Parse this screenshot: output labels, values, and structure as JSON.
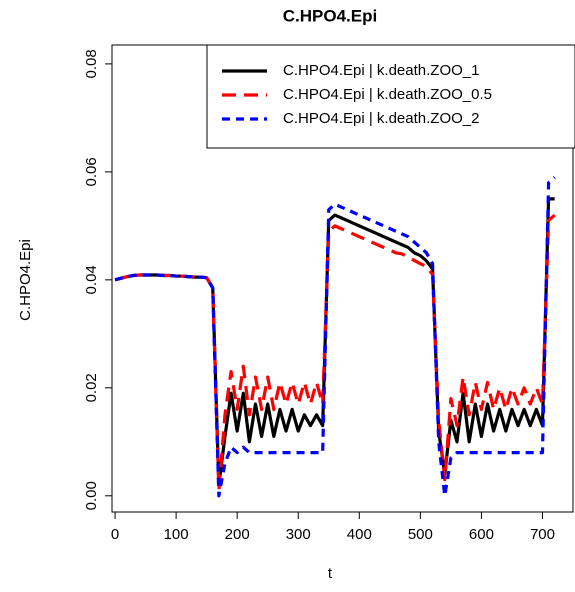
{
  "chart_data": {
    "type": "line",
    "title": "C.HPO4.Epi",
    "x_label": "t",
    "y_label": "C.HPO4.Epi",
    "x": [
      0,
      10,
      20,
      30,
      40,
      50,
      60,
      70,
      80,
      90,
      100,
      110,
      120,
      130,
      140,
      150,
      160,
      170,
      180,
      190,
      200,
      210,
      220,
      230,
      240,
      250,
      260,
      270,
      280,
      290,
      300,
      310,
      320,
      330,
      340,
      350,
      360,
      370,
      380,
      390,
      400,
      410,
      420,
      430,
      440,
      450,
      460,
      470,
      480,
      490,
      500,
      510,
      520,
      530,
      540,
      550,
      560,
      570,
      580,
      590,
      600,
      610,
      620,
      630,
      640,
      650,
      660,
      670,
      680,
      690,
      700,
      710,
      720
    ],
    "series": [
      {
        "name": "C.HPO4.Epi | k.death.ZOO_1",
        "color": "#000000",
        "dash": "none",
        "values": [
          0.04,
          0.0403,
          0.0406,
          0.0408,
          0.0409,
          0.0409,
          0.0409,
          0.0409,
          0.0408,
          0.0408,
          0.0407,
          0.0407,
          0.0406,
          0.0405,
          0.0405,
          0.0404,
          0.0385,
          0.002,
          0.011,
          0.019,
          0.012,
          0.019,
          0.01,
          0.017,
          0.011,
          0.017,
          0.011,
          0.016,
          0.012,
          0.016,
          0.012,
          0.015,
          0.013,
          0.015,
          0.013,
          0.051,
          0.052,
          0.0515,
          0.051,
          0.0505,
          0.05,
          0.0495,
          0.049,
          0.0485,
          0.048,
          0.0475,
          0.047,
          0.0465,
          0.046,
          0.045,
          0.0445,
          0.0435,
          0.042,
          0.012,
          0.004,
          0.014,
          0.01,
          0.019,
          0.01,
          0.017,
          0.011,
          0.017,
          0.012,
          0.016,
          0.012,
          0.016,
          0.013,
          0.016,
          0.013,
          0.016,
          0.013,
          0.055,
          0.055
        ]
      },
      {
        "name": "C.HPO4.Epi | k.death.ZOO_0.5",
        "color": "#ff0000",
        "dash": "14,8",
        "values": [
          0.04,
          0.0403,
          0.0406,
          0.0408,
          0.0409,
          0.0409,
          0.0409,
          0.0409,
          0.0408,
          0.0408,
          0.0407,
          0.0407,
          0.0406,
          0.0405,
          0.0405,
          0.0404,
          0.0385,
          0.001,
          0.015,
          0.023,
          0.016,
          0.024,
          0.015,
          0.022,
          0.016,
          0.022,
          0.016,
          0.021,
          0.017,
          0.021,
          0.017,
          0.021,
          0.017,
          0.021,
          0.017,
          0.049,
          0.05,
          0.0495,
          0.049,
          0.0485,
          0.048,
          0.0475,
          0.047,
          0.0465,
          0.046,
          0.0455,
          0.045,
          0.0448,
          0.0442,
          0.0436,
          0.043,
          0.0425,
          0.041,
          0.014,
          0.003,
          0.018,
          0.013,
          0.022,
          0.015,
          0.021,
          0.016,
          0.021,
          0.016,
          0.02,
          0.016,
          0.02,
          0.017,
          0.02,
          0.017,
          0.02,
          0.017,
          0.051,
          0.052
        ]
      },
      {
        "name": "C.HPO4.Epi | k.death.ZOO_2",
        "color": "#0000ff",
        "dash": "8,6",
        "values": [
          0.04,
          0.0403,
          0.0406,
          0.0408,
          0.0409,
          0.0409,
          0.0409,
          0.0409,
          0.0408,
          0.0408,
          0.0407,
          0.0407,
          0.0406,
          0.0405,
          0.0405,
          0.0404,
          0.0385,
          0.0,
          0.006,
          0.009,
          0.008,
          0.009,
          0.008,
          0.008,
          0.008,
          0.008,
          0.008,
          0.008,
          0.008,
          0.008,
          0.008,
          0.008,
          0.008,
          0.008,
          0.008,
          0.053,
          0.054,
          0.0535,
          0.053,
          0.0525,
          0.052,
          0.0515,
          0.051,
          0.0505,
          0.05,
          0.0495,
          0.049,
          0.0485,
          0.048,
          0.047,
          0.046,
          0.045,
          0.043,
          0.01,
          0.0,
          0.007,
          0.008,
          0.008,
          0.008,
          0.008,
          0.008,
          0.008,
          0.008,
          0.008,
          0.008,
          0.008,
          0.008,
          0.008,
          0.008,
          0.008,
          0.008,
          0.058,
          0.059
        ]
      }
    ],
    "xlim": [
      -5,
      750
    ],
    "ylim": [
      -0.003,
      0.0835
    ],
    "xticks": [
      0,
      100,
      200,
      300,
      400,
      500,
      600,
      700
    ],
    "yticks": [
      {
        "value": 0,
        "label": "0.00"
      },
      {
        "value": 0.02,
        "label": "0.02"
      },
      {
        "value": 0.04,
        "label": "0.04"
      },
      {
        "value": 0.06,
        "label": "0.06"
      },
      {
        "value": 0.08,
        "label": "0.08"
      }
    ],
    "legend": "top-right"
  }
}
